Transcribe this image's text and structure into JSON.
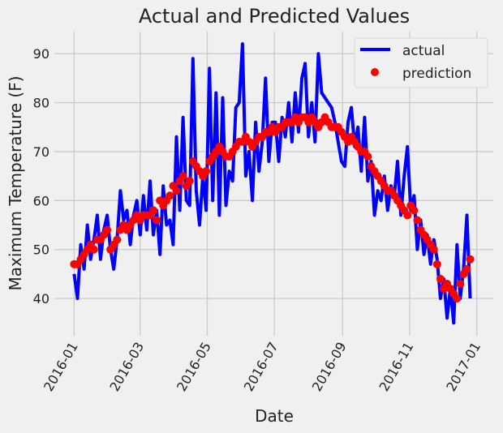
{
  "chart_data": {
    "type": "line",
    "title": "Actual and Predicted Values",
    "xlabel": "Date",
    "ylabel": "Maximum Temperature (F)",
    "x_start": "2016-01-01",
    "x_step_days": 3,
    "xlim_days": [
      -18,
      381
    ],
    "ylim": [
      32.4,
      94.5
    ],
    "yticks": [
      40,
      50,
      60,
      70,
      80,
      90
    ],
    "xticks": [
      {
        "label": "2016-01",
        "day": 0
      },
      {
        "label": "2016-03",
        "day": 60
      },
      {
        "label": "2016-05",
        "day": 121
      },
      {
        "label": "2016-07",
        "day": 182
      },
      {
        "label": "2016-09",
        "day": 244
      },
      {
        "label": "2016-11",
        "day": 305
      },
      {
        "label": "2017-01",
        "day": 366
      }
    ],
    "grid": true,
    "legend_position": "top-right",
    "series": [
      {
        "name": "actual",
        "style": "line",
        "color": "#0000ff",
        "values": [
          45,
          40,
          51,
          46,
          55,
          48,
          52,
          57,
          48,
          54,
          57,
          50,
          46,
          52,
          62,
          56,
          58,
          51,
          57,
          60,
          53,
          61,
          54,
          64,
          53,
          58,
          49,
          63,
          55,
          56,
          51,
          73,
          58,
          77,
          60,
          59,
          89,
          62,
          55,
          65,
          58,
          87,
          60,
          82,
          57,
          81,
          59,
          66,
          64,
          79,
          80,
          92,
          65,
          70,
          60,
          76,
          66,
          72,
          85,
          68,
          76,
          76,
          68,
          77,
          73,
          80,
          72,
          82,
          74,
          85,
          88,
          73,
          80,
          72,
          90,
          82,
          81,
          80,
          79,
          76,
          72,
          68,
          67,
          76,
          79,
          71,
          75,
          66,
          77,
          64,
          68,
          57,
          62,
          60,
          65,
          58,
          63,
          61,
          68,
          57,
          65,
          71,
          58,
          61,
          50,
          56,
          49,
          53,
          47,
          52,
          48,
          40,
          44,
          36,
          42,
          35,
          51,
          40,
          46,
          57,
          40
        ]
      },
      {
        "name": "prediction",
        "style": "scatter",
        "color": "#ff0000",
        "values": [
          47,
          47,
          48,
          49,
          50,
          51,
          50,
          52,
          52,
          53,
          54,
          50,
          51,
          52,
          54,
          55,
          54,
          55,
          56,
          57,
          56,
          57,
          57,
          57,
          58,
          56,
          60,
          59,
          60,
          61,
          63,
          62,
          64,
          65,
          63,
          64,
          68,
          67,
          66,
          65,
          66,
          68,
          69,
          70,
          71,
          70,
          69,
          69,
          70,
          71,
          72,
          72,
          73,
          72,
          71,
          72,
          73,
          73,
          74,
          74,
          75,
          74,
          75,
          75,
          76,
          76,
          76,
          77,
          76,
          77,
          77,
          76,
          77,
          76,
          75,
          76,
          77,
          76,
          75,
          75,
          75,
          74,
          73,
          72,
          73,
          72,
          71,
          70,
          70,
          69,
          67,
          66,
          65,
          64,
          63,
          62,
          62,
          61,
          60,
          59,
          58,
          57,
          59,
          58,
          56,
          54,
          53,
          52,
          51,
          50,
          47,
          44,
          42,
          43,
          42,
          41,
          40,
          43,
          45,
          46,
          48
        ]
      }
    ]
  }
}
